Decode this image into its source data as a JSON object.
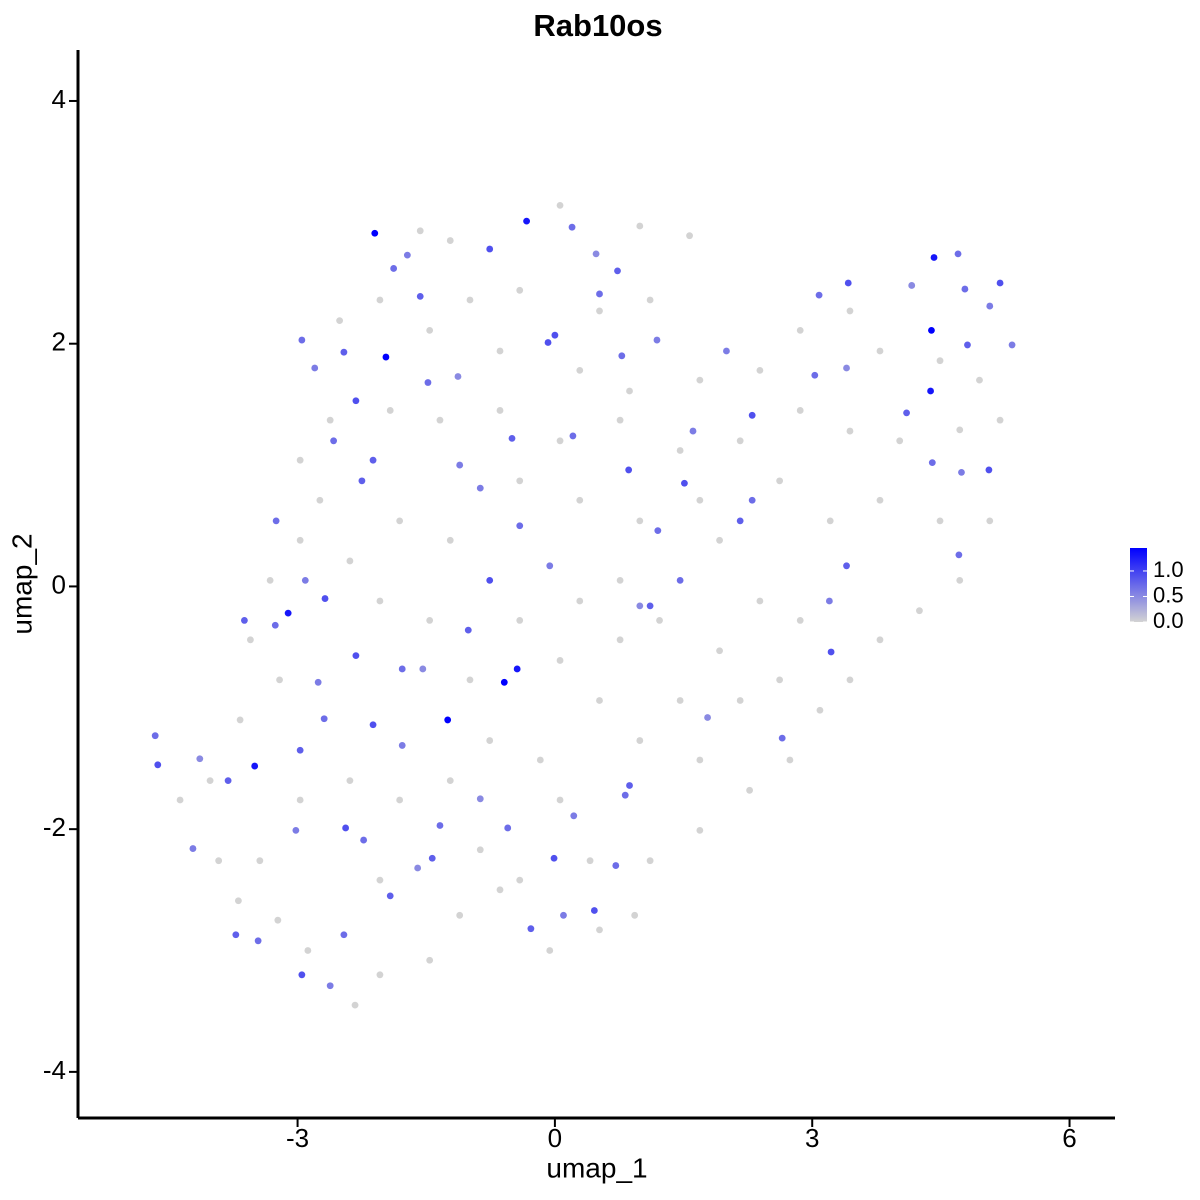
{
  "chart_data": {
    "type": "scatter",
    "title": "Rab10os",
    "x_label": "umap_1",
    "y_label": "umap_2",
    "xlim": [
      -5.56,
      6.53
    ],
    "ylim": [
      -4.38,
      4.42
    ],
    "xticks": [
      -3,
      0,
      3,
      6
    ],
    "yticks": [
      -4,
      -2,
      0,
      2,
      4
    ],
    "low_color": "#d3d3d3",
    "high_color": "#0000ff",
    "color_lim": [
      0,
      1.45
    ],
    "color_ticks": [
      {
        "value": 0,
        "label": "0.0"
      },
      {
        "value": 0.5,
        "label": "0.5"
      },
      {
        "value": 1,
        "label": "1.0"
      }
    ],
    "x": [
      0.06,
      0.99,
      1.57,
      -1.22,
      -1.57,
      -0.99,
      -0.41,
      0.52,
      1.11,
      -2.51,
      -2.04,
      -1.46,
      -0.64,
      0.29,
      0.87,
      1.69,
      2.39,
      2.86,
      3.44,
      3.79,
      4.49,
      4.95,
      5.19,
      4.72,
      4.02,
      3.44,
      2.86,
      2.16,
      1.46,
      0.76,
      0.06,
      -0.64,
      -1.34,
      -1.92,
      -2.62,
      -2.97,
      -2.74,
      -2.97,
      -3.32,
      -3.55,
      -3.21,
      -3.67,
      -4.02,
      -4.37,
      -3.92,
      -3.69,
      -3.23,
      -2.88,
      -2.33,
      -2.04,
      -1.46,
      -1.11,
      -0.64,
      -0.06,
      0.52,
      0.93,
      1.11,
      1.69,
      2.27,
      2.74,
      3.09,
      3.44,
      3.79,
      4.25,
      4.72,
      5.07,
      4.49,
      3.79,
      3.21,
      2.62,
      1.92,
      2.39,
      1.92,
      1.46,
      0.99,
      0.52,
      0.06,
      0.76,
      0.29,
      -0.41,
      -0.99,
      -1.46,
      -2.04,
      -2.39,
      -1.81,
      -1.22,
      -0.41,
      0.29,
      0.99,
      1.69,
      -0.17,
      -0.76,
      0.06,
      -1.22,
      -1.81,
      -2.39,
      -2.97,
      -3.44,
      -2.04,
      -0.87,
      -0.41,
      0.41,
      0.76,
      1.22,
      2.86,
      2.62,
      2.16,
      1.69,
      -1.88,
      -1.57,
      -1.72,
      -0.76,
      0.2,
      0.48,
      0.73,
      0.78,
      1.19,
      0,
      -2.95,
      -2.46,
      -2.8,
      -2.32,
      -1.48,
      -1.13,
      -2.12,
      -3.25,
      -2.91,
      -2.68,
      -3.26,
      -3.62,
      -2.76,
      -2.32,
      -1.78,
      -1.54,
      -1.01,
      -0.41,
      -0.06,
      -0.76,
      0.21,
      -0.5,
      -0.87,
      0.86,
      1.2,
      0.99,
      1.11,
      1.46,
      1.61,
      1.51,
      2.3,
      2.16,
      2.0,
      2.3,
      3.03,
      3.4,
      4.1,
      4.4,
      4.74,
      5.06,
      4.71,
      3.4,
      3.2,
      3.22,
      2.65,
      1.78,
      0.87,
      0.82,
      0.22,
      -0.01,
      -0.55,
      -0.28,
      0.1,
      0.46,
      0.71,
      -0.87,
      -1.43,
      -1.34,
      -1.78,
      -2.12,
      -2.69,
      -2.97,
      -3.02,
      -2.44,
      -2.23,
      -1.6,
      -1.92,
      -2.46,
      -2.62,
      -2.95,
      -3.46,
      -3.72,
      -4.22,
      -4.63,
      -4.66,
      -4.14,
      -3.81,
      4.78,
      5.07,
      5.19,
      4.7,
      4.81,
      5.33,
      3.42,
      3.08,
      4.16,
      -2.25,
      -2.58,
      -1.11,
      -0.08,
      0.52,
      -2.1,
      -1.97,
      4.42,
      4.39,
      4.38,
      -0.59,
      -0.44,
      -1.25,
      -3.5,
      -3.11,
      -0.33
    ],
    "y": [
      3.14,
      2.97,
      2.89,
      2.85,
      2.93,
      2.36,
      2.44,
      2.27,
      2.36,
      2.19,
      2.36,
      2.11,
      1.94,
      1.78,
      1.61,
      1.7,
      1.78,
      2.11,
      2.27,
      1.94,
      1.86,
      1.7,
      1.37,
      1.29,
      1.2,
      1.28,
      1.45,
      1.2,
      1.12,
      1.37,
      1.2,
      1.45,
      1.37,
      1.45,
      1.37,
      1.04,
      0.71,
      0.38,
      0.05,
      -0.44,
      -0.77,
      -1.1,
      -1.6,
      -1.76,
      -2.26,
      -2.59,
      -2.75,
      -3.0,
      -3.45,
      -3.2,
      -3.08,
      -2.71,
      -2.5,
      -3.0,
      -2.83,
      -2.71,
      -2.26,
      -2.01,
      -1.68,
      -1.43,
      -1.02,
      -0.77,
      -0.44,
      -0.2,
      0.05,
      0.54,
      0.54,
      0.71,
      0.54,
      0.87,
      0.38,
      -0.12,
      -0.53,
      -0.94,
      -1.27,
      -0.94,
      -0.61,
      -0.44,
      -0.12,
      -0.28,
      -0.77,
      -0.28,
      -0.12,
      0.21,
      0.54,
      0.38,
      0.87,
      0.71,
      0.54,
      0.71,
      -1.43,
      -1.27,
      -1.76,
      -1.6,
      -1.76,
      -1.6,
      -1.76,
      -2.26,
      -2.42,
      -2.17,
      -2.42,
      -2.26,
      0.05,
      -0.28,
      -0.28,
      -0.77,
      -0.94,
      -1.43,
      2.62,
      2.39,
      2.73,
      2.78,
      2.96,
      2.74,
      2.6,
      1.9,
      2.03,
      2.07,
      2.03,
      1.93,
      1.8,
      1.53,
      1.68,
      1.73,
      1.04,
      0.54,
      0.05,
      -0.1,
      -0.32,
      -0.28,
      -0.79,
      -0.57,
      -0.68,
      -0.68,
      -0.36,
      0.5,
      0.17,
      0.05,
      1.24,
      1.22,
      0.81,
      0.96,
      0.46,
      -0.16,
      -0.16,
      0.05,
      1.28,
      0.85,
      0.71,
      0.54,
      1.94,
      1.41,
      1.74,
      1.8,
      1.43,
      1.02,
      0.94,
      0.96,
      0.26,
      0.17,
      -0.12,
      -0.54,
      -1.25,
      -1.08,
      -1.64,
      -1.72,
      -1.89,
      -2.24,
      -1.99,
      -2.82,
      -2.71,
      -2.67,
      -2.3,
      -1.75,
      -2.24,
      -1.97,
      -1.31,
      -1.14,
      -1.09,
      -1.35,
      -2.01,
      -1.99,
      -2.09,
      -2.32,
      -2.55,
      -2.87,
      -3.29,
      -3.2,
      -2.92,
      -2.87,
      -2.16,
      -1.47,
      -1.23,
      -1.42,
      -1.6,
      2.45,
      2.31,
      2.5,
      2.74,
      1.99,
      1.99,
      2.5,
      2.4,
      2.48,
      0.87,
      1.2,
      1.0,
      2.01,
      2.41,
      2.91,
      1.89,
      2.71,
      2.11,
      1.61,
      -0.79,
      -0.68,
      -1.1,
      -1.48,
      -0.22,
      3.01
    ],
    "values": [
      0,
      0,
      0,
      0,
      0,
      0,
      0,
      0,
      0,
      0,
      0,
      0,
      0,
      0,
      0,
      0,
      0,
      0,
      0,
      0,
      0,
      0,
      0,
      0,
      0,
      0,
      0,
      0,
      0,
      0,
      0,
      0,
      0,
      0,
      0,
      0,
      0,
      0,
      0,
      0,
      0,
      0,
      0,
      0,
      0,
      0,
      0,
      0,
      0,
      0,
      0,
      0,
      0,
      0,
      0,
      0,
      0,
      0,
      0,
      0,
      0,
      0,
      0,
      0,
      0,
      0,
      0,
      0,
      0,
      0,
      0,
      0,
      0,
      0,
      0,
      0,
      0,
      0,
      0,
      0,
      0,
      0,
      0,
      0,
      0,
      0,
      0,
      0,
      0,
      0,
      0,
      0,
      0,
      0,
      0,
      0,
      0,
      0,
      0,
      0,
      0,
      0,
      0,
      0,
      0,
      0,
      0,
      0,
      0.7,
      0.8,
      0.6,
      0.9,
      0.7,
      0.5,
      0.8,
      0.7,
      0.6,
      0.9,
      0.7,
      0.8,
      0.6,
      0.9,
      0.7,
      0.5,
      0.8,
      0.7,
      0.6,
      0.9,
      0.7,
      0.8,
      0.6,
      0.9,
      0.7,
      0.5,
      0.8,
      0.7,
      0.6,
      0.9,
      0.7,
      0.8,
      0.6,
      0.9,
      0.7,
      0.5,
      0.8,
      0.7,
      0.6,
      0.9,
      0.7,
      0.8,
      0.6,
      0.9,
      0.7,
      0.5,
      0.8,
      0.7,
      0.6,
      0.9,
      0.7,
      0.8,
      0.6,
      0.9,
      0.7,
      0.5,
      0.8,
      0.7,
      0.6,
      0.9,
      0.7,
      0.8,
      0.6,
      0.9,
      0.7,
      0.5,
      0.8,
      0.7,
      0.6,
      0.9,
      0.7,
      0.8,
      0.6,
      0.9,
      0.7,
      0.5,
      0.8,
      0.7,
      0.6,
      0.9,
      0.7,
      0.8,
      0.6,
      0.9,
      0.7,
      0.5,
      0.8,
      0.7,
      0.6,
      0.9,
      0.7,
      0.8,
      0.6,
      0.9,
      0.7,
      0.5,
      0.8,
      0.7,
      0.6,
      0.9,
      0.7,
      1.45,
      1.45,
      1.3,
      1.45,
      1.3,
      1.45,
      1.3,
      1.45,
      1.3,
      1.3,
      1.3
    ]
  }
}
